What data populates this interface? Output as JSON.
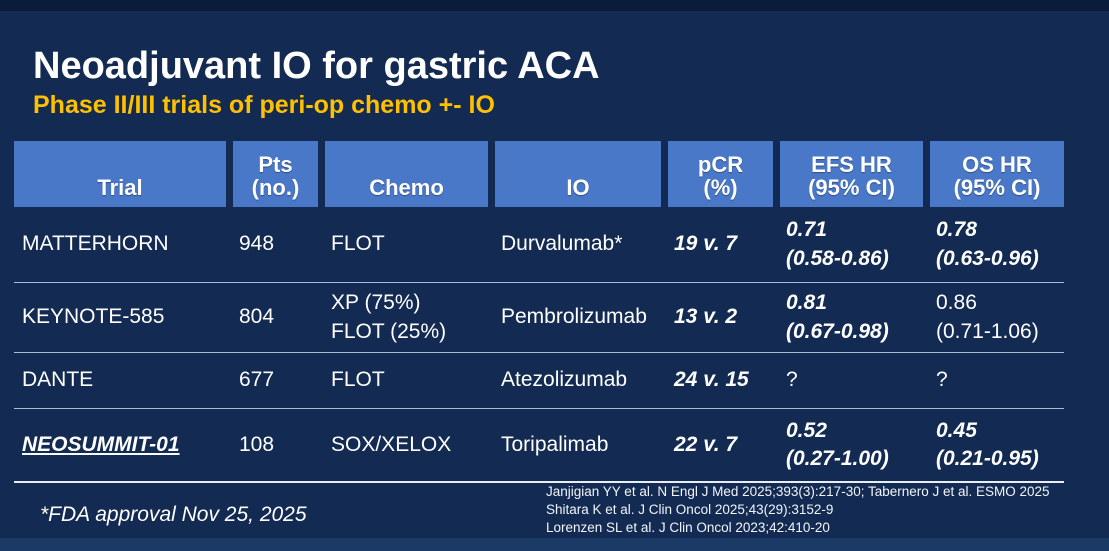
{
  "slide": {
    "title": "Neoadjuvant IO for gastric ACA",
    "subtitle": "Phase II/III trials of peri-op chemo +- IO",
    "footnote": "*FDA approval Nov 25, 2025",
    "references": {
      "line1": "Janjigian YY et al. N Engl J Med 2025;393(3):217-30; Tabernero J et al. ESMO 2025",
      "line2": "Shitara K et al. J Clin Oncol 2025;43(29):3152-9",
      "line3": "Lorenzen SL et al. J Clin Oncol 2023;42:410-20"
    },
    "colors": {
      "background_navy": "#132A52",
      "header_blue": "#4A78C8",
      "accent_yellow": "#FFC000",
      "text_white": "#FFFFFF"
    }
  },
  "table": {
    "headers": [
      "Trial",
      "Pts\n(no.)",
      "Chemo",
      "IO",
      "pCR\n(%)",
      "EFS HR\n(95% CI)",
      "OS HR\n(95% CI)"
    ],
    "rows": [
      {
        "trial": "MATTERHORN",
        "pts": "948",
        "chemo": "FLOT",
        "io": "Durvalumab*",
        "pcr": "19 v. 7",
        "efs_hr": "0.71\n(0.58-0.86)",
        "os_hr": "0.78\n(0.63-0.96)"
      },
      {
        "trial": "KEYNOTE-585",
        "pts": "804",
        "chemo": "XP (75%)\nFLOT (25%)",
        "io": "Pembrolizumab",
        "pcr": "13 v. 2",
        "efs_hr": "0.81\n(0.67-0.98)",
        "os_hr": "0.86\n(0.71-1.06)"
      },
      {
        "trial": "DANTE",
        "pts": "677",
        "chemo": "FLOT",
        "io": "Atezolizumab",
        "pcr": "24 v. 15",
        "efs_hr": "?",
        "os_hr": "?"
      },
      {
        "trial": "NEOSUMMIT-01",
        "pts": "108",
        "chemo": "SOX/XELOX",
        "io": "Toripalimab",
        "pcr": "22 v. 7",
        "efs_hr": "0.52\n(0.27-1.00)",
        "os_hr": "0.45\n(0.21-0.95)"
      }
    ]
  }
}
